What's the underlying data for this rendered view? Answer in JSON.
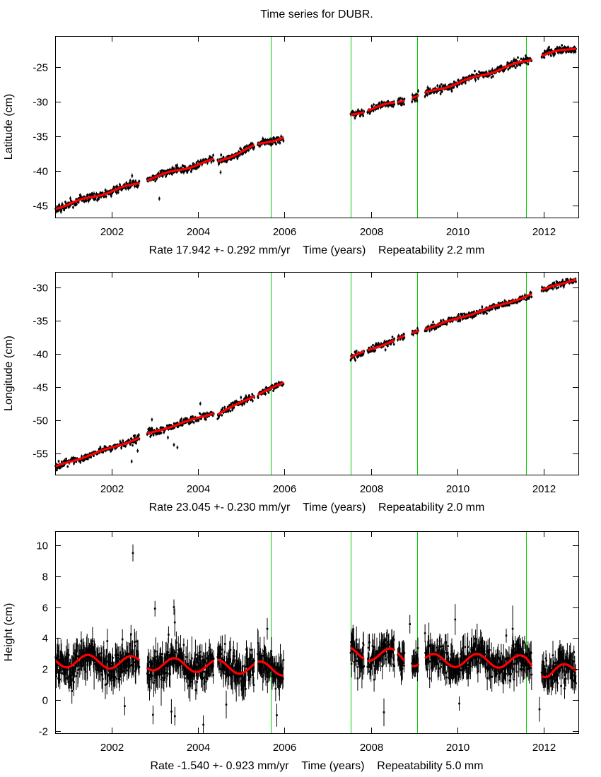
{
  "title": "Time series for DUBR.",
  "colors": {
    "background": "#ffffff",
    "axis": "#000000",
    "data_points": "#000000",
    "fit_line": "#ff0000",
    "event_line": "#00d000"
  },
  "x_axis": {
    "label": "Time (years)",
    "lim": [
      2000.69,
      2012.8
    ],
    "ticks": [
      2002,
      2004,
      2006,
      2008,
      2010,
      2012
    ]
  },
  "event_lines": [
    2005.68,
    2007.53,
    2009.07,
    2011.59
  ],
  "data_segments": [
    [
      2000.7,
      2002.64
    ],
    [
      2002.82,
      2004.36
    ],
    [
      2004.45,
      2005.3
    ],
    [
      2005.38,
      2005.98
    ],
    [
      2007.53,
      2007.84
    ],
    [
      2007.92,
      2008.55
    ],
    [
      2008.62,
      2008.78
    ],
    [
      2008.95,
      2009.1
    ],
    [
      2009.25,
      2011.72
    ],
    [
      2011.95,
      2012.75
    ]
  ],
  "chart_data": [
    {
      "type": "scatter",
      "station": "DUBR",
      "component": "latitude",
      "ylabel": "Latitude (cm)",
      "ylim": [
        -46.73,
        -20.52
      ],
      "yticks": [
        -25,
        -30,
        -35,
        -40,
        -45
      ],
      "rate_text": "Rate 17.942 +- 0.292 mm/yr",
      "repeatability_text": "Repeatability 2.2 mm",
      "rate_mm_yr": 17.942,
      "rate_sigma_mm_yr": 0.292,
      "repeatability_mm": 2.2,
      "trend_anchors": [
        [
          2000.7,
          -45.35
        ],
        [
          2002.64,
          -41.7
        ],
        [
          2002.82,
          -41.2
        ],
        [
          2004.36,
          -38.4
        ],
        [
          2004.45,
          -38.7
        ],
        [
          2005.3,
          -36.4
        ],
        [
          2005.98,
          -35.1
        ],
        [
          2007.53,
          -31.9
        ],
        [
          2009.07,
          -29.2
        ],
        [
          2011.59,
          -24.1
        ],
        [
          2012.0,
          -23.2
        ],
        [
          2012.75,
          -22.2
        ]
      ],
      "seasonal_amplitude_cm": 0.15,
      "seasonal_phase_yr": 0.05,
      "noise_sd_cm": 0.28,
      "error_bar_cm": [
        0.18,
        0.32
      ],
      "outliers": [
        [
          2002.47,
          -40.7,
          0.35
        ],
        [
          2004.52,
          -40.2,
          0.3
        ],
        [
          2003.1,
          -44.0,
          0.3
        ]
      ]
    },
    {
      "type": "scatter",
      "station": "DUBR",
      "component": "longitude",
      "ylabel": "Longitude (cm)",
      "ylim": [
        -58.2,
        -27.66
      ],
      "yticks": [
        -30,
        -35,
        -40,
        -45,
        -50,
        -55
      ],
      "rate_text": "Rate 23.045 +- 0.230 mm/yr",
      "repeatability_text": "Repeatability 2.0 mm",
      "rate_mm_yr": 23.045,
      "rate_sigma_mm_yr": 0.23,
      "repeatability_mm": 2.0,
      "trend_anchors": [
        [
          2000.7,
          -57.0
        ],
        [
          2002.64,
          -52.7
        ],
        [
          2002.82,
          -52.1
        ],
        [
          2004.36,
          -48.9
        ],
        [
          2004.45,
          -49.1
        ],
        [
          2005.3,
          -46.3
        ],
        [
          2005.98,
          -44.4
        ],
        [
          2007.53,
          -40.5
        ],
        [
          2009.07,
          -36.6
        ],
        [
          2011.59,
          -31.4
        ],
        [
          2012.2,
          -29.7
        ],
        [
          2012.75,
          -28.9
        ]
      ],
      "seasonal_amplitude_cm": 0.08,
      "seasonal_phase_yr": 0.55,
      "noise_sd_cm": 0.25,
      "error_bar_cm": [
        0.16,
        0.3
      ],
      "outliers": [
        [
          2002.46,
          -56.2,
          0.3
        ],
        [
          2002.6,
          -54.6,
          0.3
        ],
        [
          2002.93,
          -49.9,
          0.3
        ],
        [
          2003.3,
          -52.6,
          0.3
        ],
        [
          2003.44,
          -53.7,
          0.3
        ],
        [
          2003.52,
          -54.1,
          0.3
        ],
        [
          2004.05,
          -47.5,
          0.3
        ]
      ]
    },
    {
      "type": "scatter",
      "station": "DUBR",
      "component": "height",
      "ylabel": "Height (cm)",
      "ylim": [
        -2.15,
        10.91
      ],
      "yticks": [
        10,
        8,
        6,
        4,
        2,
        0,
        -2
      ],
      "rate_text": "Rate -1.540 +- 0.923 mm/yr",
      "repeatability_text": "Repeatability 5.0 mm",
      "rate_mm_yr": -1.54,
      "rate_sigma_mm_yr": 0.923,
      "repeatability_mm": 5.0,
      "trend_anchors": [
        [
          2000.7,
          2.55
        ],
        [
          2002.64,
          2.4
        ],
        [
          2002.82,
          2.35
        ],
        [
          2005.98,
          2.0
        ],
        [
          2007.53,
          3.0
        ],
        [
          2008.5,
          2.9
        ],
        [
          2009.07,
          2.55
        ],
        [
          2010.5,
          2.55
        ],
        [
          2011.59,
          2.45
        ],
        [
          2012.1,
          1.75
        ],
        [
          2012.75,
          2.0
        ]
      ],
      "seasonal_amplitude_cm": 0.42,
      "seasonal_phase_yr": 0.2,
      "noise_sd_cm": 0.52,
      "error_bar_cm": [
        0.42,
        0.95
      ],
      "outliers": [
        [
          2002.49,
          9.5,
          0.55
        ],
        [
          2002.3,
          -0.4,
          0.6
        ],
        [
          2003.0,
          5.9,
          0.5
        ],
        [
          2003.38,
          -0.75,
          0.8
        ],
        [
          2003.44,
          6.0,
          0.5
        ],
        [
          2003.46,
          -1.05,
          0.6
        ],
        [
          2004.12,
          -1.6,
          0.6
        ],
        [
          2004.65,
          -0.3,
          0.9
        ],
        [
          2005.6,
          4.6,
          0.7
        ],
        [
          2008.3,
          -0.8,
          0.9
        ],
        [
          2008.9,
          4.9,
          0.6
        ],
        [
          2009.95,
          5.2,
          1.0
        ],
        [
          2011.28,
          4.6,
          1.5
        ],
        [
          2011.9,
          -0.6,
          0.8
        ],
        [
          2012.4,
          0.9,
          0.6
        ]
      ]
    }
  ]
}
